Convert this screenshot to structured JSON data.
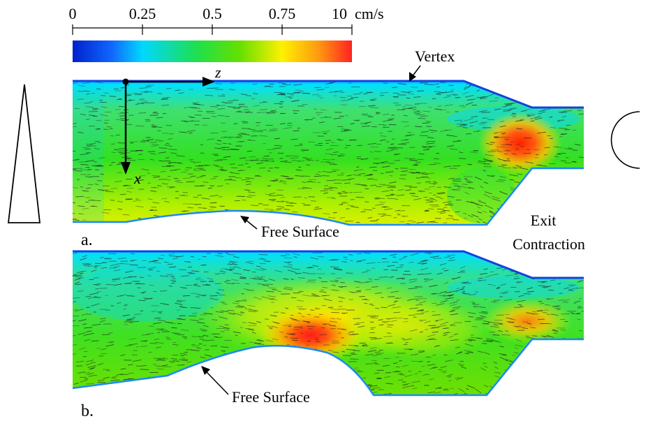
{
  "colorbar": {
    "ticks": [
      "0",
      "0.25",
      "0.5",
      "0.75",
      "10"
    ],
    "unit": "cm/s",
    "colors": [
      "#0022cc",
      "#1166ff",
      "#00d8ff",
      "#1fe04a",
      "#66e000",
      "#fff000",
      "#ff9a10",
      "#ff2222"
    ]
  },
  "labels": {
    "vertex": "Vertex",
    "free_surface_a": "Free Surface",
    "free_surface_b": "Free Surface",
    "exit_contraction_line1": "Exit",
    "exit_contraction_line2": "Contraction",
    "panel_a": "a.",
    "panel_b": "b.",
    "axis_x": "x",
    "axis_z": "z"
  }
}
